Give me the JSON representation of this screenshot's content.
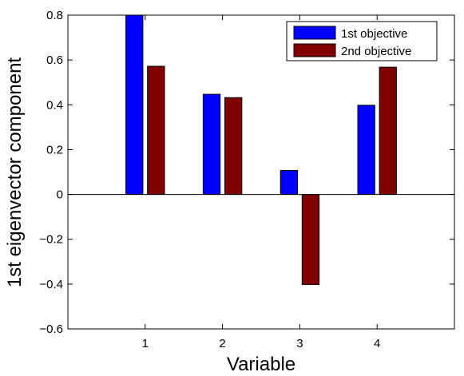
{
  "chart_data": {
    "type": "bar",
    "categories": [
      "1",
      "2",
      "3",
      "4"
    ],
    "series": [
      {
        "name": "1st objective",
        "color": "#0000ff",
        "values": [
          0.8,
          0.447,
          0.107,
          0.398
        ]
      },
      {
        "name": "2nd objective",
        "color": "#800000",
        "values": [
          0.572,
          0.432,
          -0.402,
          0.568
        ]
      }
    ],
    "xlabel": "Variable",
    "ylabel": "1st eigenvector component",
    "xlim": [
      0,
      5
    ],
    "ylim": [
      -0.6,
      0.8
    ],
    "yticks": [
      -0.6,
      -0.4,
      -0.2,
      0,
      0.2,
      0.4,
      0.6,
      0.8
    ],
    "ytick_labels": [
      "−0.6",
      "−0.4",
      "−0.2",
      "0",
      "0.2",
      "0.4",
      "0.6",
      "0.8"
    ],
    "legend": "top-right",
    "grid": false
  }
}
